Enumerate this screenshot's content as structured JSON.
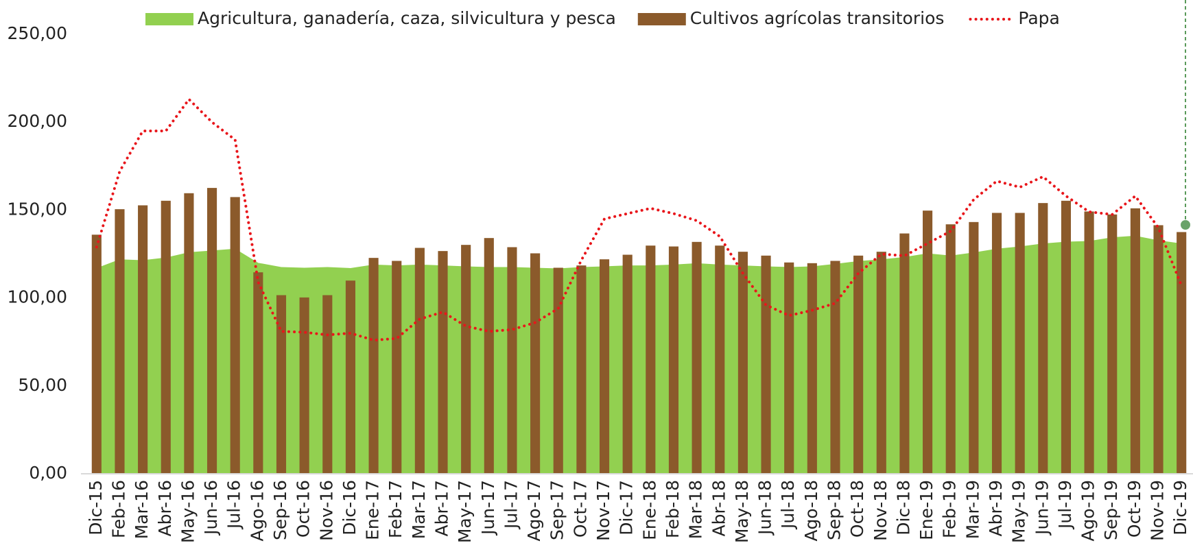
{
  "chart_data": {
    "type": "combo",
    "categories": [
      "Dic-15",
      "Feb-16",
      "Mar-16",
      "Abr-16",
      "May-16",
      "Jun-16",
      "Jul-16",
      "Ago-16",
      "Sep-16",
      "Oct-16",
      "Nov-16",
      "Dic-16",
      "Ene-17",
      "Feb-17",
      "Mar-17",
      "Abr-17",
      "May-17",
      "Jun-17",
      "Jul-17",
      "Ago-17",
      "Sep-17",
      "Oct-17",
      "Nov-17",
      "Dic-17",
      "Ene-18",
      "Feb-18",
      "Mar-18",
      "Abr-18",
      "May-18",
      "Jun-18",
      "Jul-18",
      "Ago-18",
      "Sep-18",
      "Oct-18",
      "Nov-18",
      "Dic-18",
      "Ene-19",
      "Feb-19",
      "Mar-19",
      "Abr-19",
      "May-19",
      "Jun-19",
      "Jul-19",
      "Ago-19",
      "Sep-19",
      "Oct-19",
      "Nov-19",
      "Dic-19"
    ],
    "series": [
      {
        "name": "Agricultura, ganadería, caza, silvicultura y pesca",
        "kind": "area",
        "color": "#92d050",
        "values": [
          117,
          122,
          121.5,
          123,
          126,
          127,
          128,
          120,
          117.6,
          117.2,
          117.6,
          117,
          119,
          118.5,
          119,
          118.5,
          118,
          117.6,
          117.6,
          117.2,
          116.8,
          117.6,
          118,
          118.5,
          118.5,
          119,
          119.8,
          119,
          118.5,
          118,
          117.6,
          118,
          119.4,
          121,
          122,
          123.3,
          125.4,
          124.1,
          125.9,
          128,
          129.3,
          131,
          132,
          132.4,
          134.5,
          135.4,
          132.8,
          131
        ]
      },
      {
        "name": "Cultivos agrícolas transitorios",
        "kind": "bar",
        "color": "#8b5a2b",
        "values": [
          136,
          150.5,
          152.7,
          155.3,
          159.6,
          162.6,
          157.4,
          114.6,
          101.6,
          100.3,
          101.6,
          109.9,
          122.8,
          121.1,
          128.5,
          126.7,
          130.2,
          134.1,
          128.9,
          125.4,
          117.2,
          118.5,
          122,
          124.6,
          129.8,
          129.3,
          131.9,
          129.8,
          126.3,
          124.1,
          120.2,
          119.8,
          121.1,
          124.1,
          126.3,
          136.7,
          149.7,
          141.9,
          143.2,
          148.4,
          148.4,
          154,
          155.3,
          149.2,
          147.5,
          151,
          141.4,
          137.5
        ]
      },
      {
        "name": "Papa",
        "kind": "line",
        "color": "#e8161b",
        "values": [
          129,
          172,
          195,
          195,
          213,
          200,
          190,
          109,
          81,
          80.5,
          79,
          80,
          76,
          77,
          88,
          92,
          84,
          81,
          82,
          86,
          94,
          121.5,
          145,
          148,
          151,
          148,
          144,
          135,
          114,
          96,
          90,
          93,
          97,
          114,
          125,
          124,
          131,
          138,
          156,
          166.5,
          163,
          169,
          158,
          149,
          147.5,
          158,
          140,
          107
        ]
      }
    ],
    "ylim": [
      0,
      250
    ],
    "yticks": [
      {
        "value": 0,
        "label": "0,00"
      },
      {
        "value": 50,
        "label": "50,00"
      },
      {
        "value": 100,
        "label": "100,00"
      },
      {
        "value": 150,
        "label": "150,00"
      },
      {
        "value": 200,
        "label": "200,00"
      },
      {
        "value": 250,
        "label": "250,00"
      }
    ],
    "legend": "top"
  }
}
